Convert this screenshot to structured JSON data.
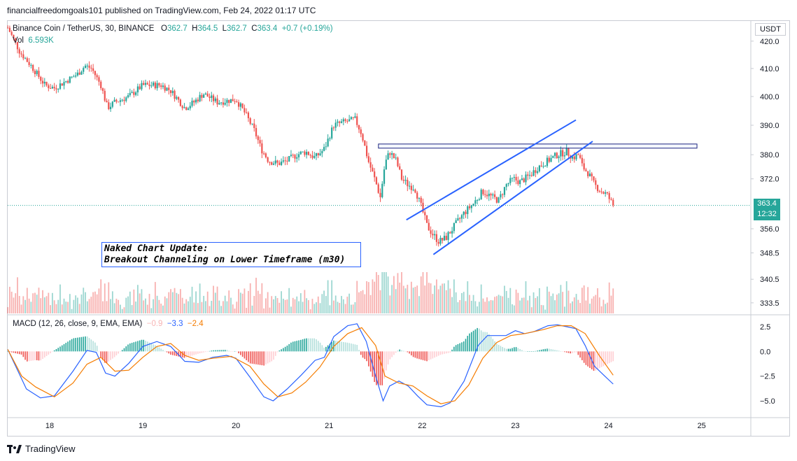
{
  "credit": "financialfreedomgoals101 published on TradingView.com, Feb 24, 2022 01:17 UTC",
  "legend": {
    "symbol": "Binance Coin / TetherUS, 30, BINANCE",
    "o_label": "O",
    "o": "362.7",
    "h_label": "H",
    "h": "364.5",
    "l_label": "L",
    "l": "362.7",
    "c_label": "C",
    "c": "363.4",
    "change": "+0.7 (+0.19%)",
    "vol_label": "Vol",
    "vol": "6.593K"
  },
  "macd_legend": {
    "label": "MACD (12, 26, close, 9, EMA, EMA)",
    "hist": "−0.9",
    "macd": "−3.3",
    "signal": "−2.4"
  },
  "currency": "USDT",
  "last_price": {
    "value": "363.4",
    "countdown": "12:32"
  },
  "annotation": {
    "line1": "Naked Chart Update:",
    "line2": "Breakout Channeling on Lower Timeframe (m30)"
  },
  "brand": "TradingView",
  "colors": {
    "up": "#26a69a",
    "down": "#ef5350",
    "macd": "#2962ff",
    "signal": "#f57c00",
    "drawing": "#2962ff"
  },
  "chart_data": [
    {
      "type": "candlestick",
      "title": "Binance Coin / TetherUS, 30, BINANCE",
      "x_tick_labels": [
        "18",
        "19",
        "20",
        "21",
        "22",
        "23",
        "24",
        "25"
      ],
      "y_tick_labels": [
        "420.0",
        "410.0",
        "400.0",
        "390.0",
        "380.0",
        "372.0",
        "363.4",
        "356.0",
        "348.5",
        "340.5",
        "333.5"
      ],
      "y_scale": "log",
      "ylim": [
        330,
        427
      ],
      "x_range_days": [
        17.55,
        25.45
      ],
      "close_path": [
        {
          "d": 17.55,
          "v": 425
        },
        {
          "d": 17.68,
          "v": 416
        },
        {
          "d": 17.8,
          "v": 411
        },
        {
          "d": 17.95,
          "v": 404
        },
        {
          "d": 18.05,
          "v": 403
        },
        {
          "d": 18.2,
          "v": 406
        },
        {
          "d": 18.3,
          "v": 408
        },
        {
          "d": 18.38,
          "v": 411
        },
        {
          "d": 18.45,
          "v": 410
        },
        {
          "d": 18.55,
          "v": 404
        },
        {
          "d": 18.62,
          "v": 396
        },
        {
          "d": 18.7,
          "v": 398
        },
        {
          "d": 18.85,
          "v": 400
        },
        {
          "d": 19.0,
          "v": 404
        },
        {
          "d": 19.2,
          "v": 404
        },
        {
          "d": 19.3,
          "v": 402
        },
        {
          "d": 19.45,
          "v": 396
        },
        {
          "d": 19.55,
          "v": 398
        },
        {
          "d": 19.65,
          "v": 401
        },
        {
          "d": 19.8,
          "v": 398
        },
        {
          "d": 20.0,
          "v": 399
        },
        {
          "d": 20.1,
          "v": 394
        },
        {
          "d": 20.2,
          "v": 388
        },
        {
          "d": 20.27,
          "v": 382
        },
        {
          "d": 20.35,
          "v": 378
        },
        {
          "d": 20.45,
          "v": 377
        },
        {
          "d": 20.55,
          "v": 378
        },
        {
          "d": 20.65,
          "v": 380
        },
        {
          "d": 20.75,
          "v": 381
        },
        {
          "d": 20.85,
          "v": 379
        },
        {
          "d": 20.95,
          "v": 382
        },
        {
          "d": 21.05,
          "v": 390
        },
        {
          "d": 21.15,
          "v": 391
        },
        {
          "d": 21.28,
          "v": 392
        },
        {
          "d": 21.35,
          "v": 387
        },
        {
          "d": 21.42,
          "v": 378
        },
        {
          "d": 21.5,
          "v": 371
        },
        {
          "d": 21.55,
          "v": 366
        },
        {
          "d": 21.6,
          "v": 377
        },
        {
          "d": 21.65,
          "v": 381
        },
        {
          "d": 21.72,
          "v": 378
        },
        {
          "d": 21.78,
          "v": 372
        },
        {
          "d": 21.85,
          "v": 370
        },
        {
          "d": 21.92,
          "v": 369
        },
        {
          "d": 22.0,
          "v": 362
        },
        {
          "d": 22.05,
          "v": 357
        },
        {
          "d": 22.12,
          "v": 354
        },
        {
          "d": 22.18,
          "v": 352
        },
        {
          "d": 22.25,
          "v": 353
        },
        {
          "d": 22.35,
          "v": 357
        },
        {
          "d": 22.45,
          "v": 361
        },
        {
          "d": 22.55,
          "v": 364
        },
        {
          "d": 22.65,
          "v": 368
        },
        {
          "d": 22.75,
          "v": 366
        },
        {
          "d": 22.82,
          "v": 365
        },
        {
          "d": 22.9,
          "v": 370
        },
        {
          "d": 22.98,
          "v": 372
        },
        {
          "d": 23.05,
          "v": 371
        },
        {
          "d": 23.15,
          "v": 373
        },
        {
          "d": 23.25,
          "v": 376
        },
        {
          "d": 23.35,
          "v": 378
        },
        {
          "d": 23.45,
          "v": 380
        },
        {
          "d": 23.55,
          "v": 381
        },
        {
          "d": 23.62,
          "v": 379
        },
        {
          "d": 23.68,
          "v": 380
        },
        {
          "d": 23.72,
          "v": 376
        },
        {
          "d": 23.78,
          "v": 374
        },
        {
          "d": 23.85,
          "v": 370
        },
        {
          "d": 23.92,
          "v": 368
        },
        {
          "d": 23.98,
          "v": 367
        },
        {
          "d": 24.05,
          "v": 363.4
        }
      ],
      "last_close": 363.4,
      "drawings": [
        {
          "type": "rectangle",
          "from": {
            "d": 21.53,
            "v": 383.6
          },
          "to": {
            "d": 24.95,
            "v": 382.2
          }
        },
        {
          "type": "trendline",
          "from": {
            "d": 21.83,
            "v": 358.8
          },
          "to": {
            "d": 23.65,
            "v": 391.8
          }
        },
        {
          "type": "trendline",
          "from": {
            "d": 22.12,
            "v": 348.0
          },
          "to": {
            "d": 23.83,
            "v": 384.5
          }
        }
      ]
    },
    {
      "type": "bar",
      "title": "Vol",
      "last_value": "6.593K"
    },
    {
      "type": "line",
      "title": "MACD (12, 26, close, 9, EMA, EMA)",
      "y_tick_labels": [
        "2.5",
        "0.0",
        "−2.5",
        "−5.0"
      ],
      "ylim": [
        -6.2,
        3.4
      ],
      "series": [
        {
          "name": "MACD",
          "values": [
            {
              "d": 17.55,
              "v": 0.2
            },
            {
              "d": 17.75,
              "v": -3.8
            },
            {
              "d": 17.9,
              "v": -4.7
            },
            {
              "d": 18.05,
              "v": -4.5
            },
            {
              "d": 18.25,
              "v": -2.0
            },
            {
              "d": 18.4,
              "v": 0.1
            },
            {
              "d": 18.5,
              "v": -0.1
            },
            {
              "d": 18.6,
              "v": -2.2
            },
            {
              "d": 18.7,
              "v": -2.5
            },
            {
              "d": 18.85,
              "v": -1.2
            },
            {
              "d": 19.0,
              "v": 0.5
            },
            {
              "d": 19.15,
              "v": 1.0
            },
            {
              "d": 19.3,
              "v": 0.5
            },
            {
              "d": 19.45,
              "v": -1.0
            },
            {
              "d": 19.6,
              "v": -1.1
            },
            {
              "d": 19.75,
              "v": -0.6
            },
            {
              "d": 19.9,
              "v": -0.4
            },
            {
              "d": 20.0,
              "v": -0.7
            },
            {
              "d": 20.15,
              "v": -2.6
            },
            {
              "d": 20.3,
              "v": -4.6
            },
            {
              "d": 20.4,
              "v": -5.0
            },
            {
              "d": 20.55,
              "v": -3.8
            },
            {
              "d": 20.7,
              "v": -2.4
            },
            {
              "d": 20.85,
              "v": -0.9
            },
            {
              "d": 20.95,
              "v": -0.6
            },
            {
              "d": 21.05,
              "v": 1.5
            },
            {
              "d": 21.2,
              "v": 2.6
            },
            {
              "d": 21.3,
              "v": 2.8
            },
            {
              "d": 21.4,
              "v": 1.0
            },
            {
              "d": 21.5,
              "v": -2.5
            },
            {
              "d": 21.58,
              "v": -5.0
            },
            {
              "d": 21.65,
              "v": -3.5
            },
            {
              "d": 21.75,
              "v": -3.0
            },
            {
              "d": 21.85,
              "v": -3.5
            },
            {
              "d": 21.95,
              "v": -4.5
            },
            {
              "d": 22.05,
              "v": -5.4
            },
            {
              "d": 22.2,
              "v": -5.6
            },
            {
              "d": 22.3,
              "v": -5.2
            },
            {
              "d": 22.45,
              "v": -3.0
            },
            {
              "d": 22.6,
              "v": 0.6
            },
            {
              "d": 22.7,
              "v": 1.6
            },
            {
              "d": 22.8,
              "v": 1.6
            },
            {
              "d": 22.9,
              "v": 1.6
            },
            {
              "d": 23.0,
              "v": 2.1
            },
            {
              "d": 23.1,
              "v": 1.8
            },
            {
              "d": 23.2,
              "v": 2.0
            },
            {
              "d": 23.35,
              "v": 2.6
            },
            {
              "d": 23.45,
              "v": 2.7
            },
            {
              "d": 23.55,
              "v": 2.5
            },
            {
              "d": 23.65,
              "v": 2.3
            },
            {
              "d": 23.75,
              "v": 0.6
            },
            {
              "d": 23.85,
              "v": -1.5
            },
            {
              "d": 23.95,
              "v": -2.4
            },
            {
              "d": 24.05,
              "v": -3.3
            }
          ]
        },
        {
          "name": "Signal",
          "values": [
            {
              "d": 17.55,
              "v": 0.2
            },
            {
              "d": 17.7,
              "v": -2.5
            },
            {
              "d": 17.85,
              "v": -3.6
            },
            {
              "d": 18.05,
              "v": -4.6
            },
            {
              "d": 18.25,
              "v": -3.2
            },
            {
              "d": 18.4,
              "v": -1.3
            },
            {
              "d": 18.55,
              "v": -0.6
            },
            {
              "d": 18.7,
              "v": -2.0
            },
            {
              "d": 18.85,
              "v": -1.9
            },
            {
              "d": 19.0,
              "v": -0.6
            },
            {
              "d": 19.15,
              "v": 0.5
            },
            {
              "d": 19.3,
              "v": 0.8
            },
            {
              "d": 19.45,
              "v": -0.4
            },
            {
              "d": 19.6,
              "v": -0.9
            },
            {
              "d": 19.75,
              "v": -0.7
            },
            {
              "d": 19.95,
              "v": -0.5
            },
            {
              "d": 20.15,
              "v": -1.5
            },
            {
              "d": 20.3,
              "v": -3.3
            },
            {
              "d": 20.45,
              "v": -4.6
            },
            {
              "d": 20.6,
              "v": -4.2
            },
            {
              "d": 20.75,
              "v": -3.1
            },
            {
              "d": 20.9,
              "v": -1.6
            },
            {
              "d": 21.05,
              "v": 0.5
            },
            {
              "d": 21.2,
              "v": 1.8
            },
            {
              "d": 21.35,
              "v": 2.4
            },
            {
              "d": 21.5,
              "v": 0.6
            },
            {
              "d": 21.6,
              "v": -2.5
            },
            {
              "d": 21.75,
              "v": -3.2
            },
            {
              "d": 21.9,
              "v": -3.5
            },
            {
              "d": 22.05,
              "v": -4.5
            },
            {
              "d": 22.2,
              "v": -5.3
            },
            {
              "d": 22.35,
              "v": -5.0
            },
            {
              "d": 22.5,
              "v": -3.4
            },
            {
              "d": 22.65,
              "v": -0.7
            },
            {
              "d": 22.8,
              "v": 0.9
            },
            {
              "d": 22.95,
              "v": 1.6
            },
            {
              "d": 23.1,
              "v": 1.8
            },
            {
              "d": 23.3,
              "v": 2.2
            },
            {
              "d": 23.45,
              "v": 2.6
            },
            {
              "d": 23.6,
              "v": 2.6
            },
            {
              "d": 23.75,
              "v": 1.8
            },
            {
              "d": 23.9,
              "v": -0.4
            },
            {
              "d": 24.05,
              "v": -2.4
            }
          ]
        }
      ]
    }
  ]
}
